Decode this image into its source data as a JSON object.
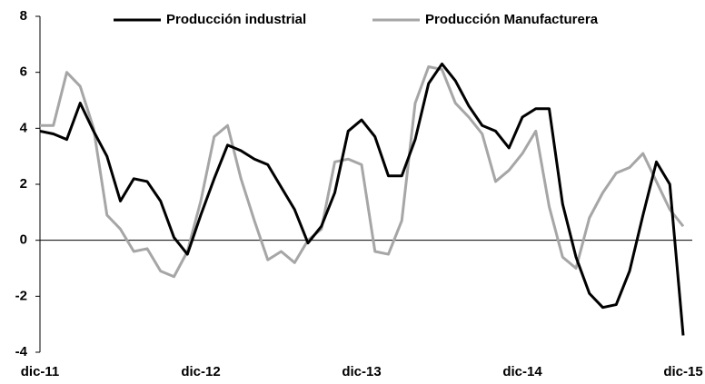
{
  "chart_data": {
    "type": "line",
    "categories": [
      "dic-11",
      null,
      null,
      null,
      null,
      null,
      null,
      null,
      null,
      null,
      null,
      null,
      "dic-12",
      null,
      null,
      null,
      null,
      null,
      null,
      null,
      null,
      null,
      null,
      null,
      "dic-13",
      null,
      null,
      null,
      null,
      null,
      null,
      null,
      null,
      null,
      null,
      null,
      "dic-14",
      null,
      null,
      null,
      null,
      null,
      null,
      null,
      null,
      null,
      null,
      null,
      "dic-15"
    ],
    "series": [
      {
        "name": "Producción industrial",
        "color": "#000000",
        "values": [
          3.9,
          3.8,
          3.6,
          4.9,
          3.9,
          3.0,
          1.4,
          2.2,
          2.1,
          1.4,
          0.1,
          -0.5,
          0.9,
          2.2,
          3.4,
          3.2,
          2.9,
          2.7,
          1.9,
          1.1,
          -0.1,
          0.5,
          1.7,
          3.9,
          4.3,
          3.7,
          2.3,
          2.3,
          3.6,
          5.6,
          6.3,
          5.7,
          4.8,
          4.1,
          3.9,
          3.3,
          4.4,
          4.7,
          4.7,
          1.3,
          -0.6,
          -1.9,
          -2.4,
          -2.3,
          -1.1,
          0.9,
          2.8,
          2.0,
          -3.4
        ]
      },
      {
        "name": "Producción Manufacturera",
        "color": "#a6a6a6",
        "values": [
          4.1,
          4.1,
          6.0,
          5.5,
          4.0,
          0.9,
          0.4,
          -0.4,
          -0.3,
          -1.1,
          -1.3,
          -0.4,
          1.4,
          3.7,
          4.1,
          2.2,
          0.7,
          -0.7,
          -0.4,
          -0.8,
          0.0,
          0.4,
          2.8,
          2.9,
          2.7,
          -0.4,
          -0.5,
          0.7,
          4.9,
          6.2,
          6.1,
          4.9,
          4.4,
          3.8,
          2.1,
          2.5,
          3.1,
          3.9,
          1.2,
          -0.6,
          -1.0,
          0.8,
          1.7,
          2.4,
          2.6,
          3.1,
          2.1,
          1.1,
          0.5
        ]
      }
    ],
    "ylim": [
      -4,
      8
    ],
    "yticks": [
      -4,
      -2,
      0,
      2,
      4,
      6,
      8
    ],
    "grid": false,
    "legend": "top"
  }
}
